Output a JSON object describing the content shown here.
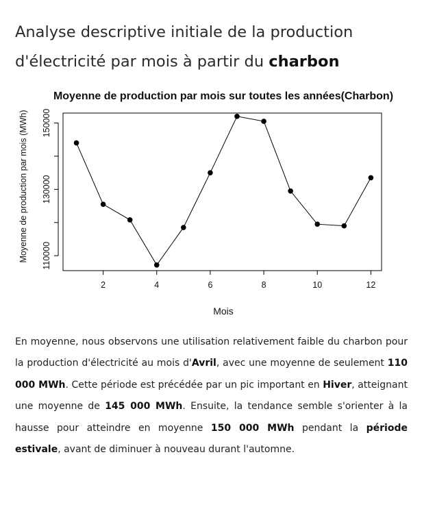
{
  "heading": {
    "line1": "Analyse descriptive initiale de la production",
    "line2_prefix": "d'électricité par mois à partir du ",
    "line2_bold": "charbon"
  },
  "chart_data": {
    "type": "line",
    "title": "Moyenne de production par mois sur toutes les années(Charbon)",
    "xlabel": "Mois",
    "ylabel": "Moyenne de production par mois (MWh)",
    "x": [
      1,
      2,
      3,
      4,
      5,
      6,
      7,
      8,
      9,
      10,
      11,
      12
    ],
    "y": [
      144000,
      125500,
      120800,
      107200,
      118500,
      135000,
      152000,
      150500,
      129500,
      119500,
      119000,
      133500
    ],
    "xlim": [
      0.5,
      12.4
    ],
    "ylim": [
      105500,
      153000
    ],
    "x_ticks": [
      2,
      4,
      6,
      8,
      10,
      12
    ],
    "y_ticks_labeled": [
      110000,
      130000,
      150000
    ],
    "y_ticks_minor": [
      120000,
      140000
    ],
    "grid": false,
    "legend": "none",
    "point_style": "filled-circle",
    "color": "#000000"
  },
  "paragraph": {
    "s1": "En moyenne, nous observons une utilisation relativement faible du charbon pour la production d'électricité au mois d'",
    "b1": "Avril",
    "s2": ", avec une moyenne de seulement ",
    "b2": "110 000 MWh",
    "s3": ". Cette période est précédée par un pic important en ",
    "b3": "Hiver",
    "s4": ", atteignant une moyenne de ",
    "b4": "145 000 MWh",
    "s5": ". Ensuite, la tendance semble s'orienter à la hausse pour atteindre en moyenne ",
    "b5": "150 000 MWh",
    "s6": " pendant la ",
    "b6": "période estivale",
    "s7": ", avant de diminuer à nouveau durant l'automne."
  }
}
